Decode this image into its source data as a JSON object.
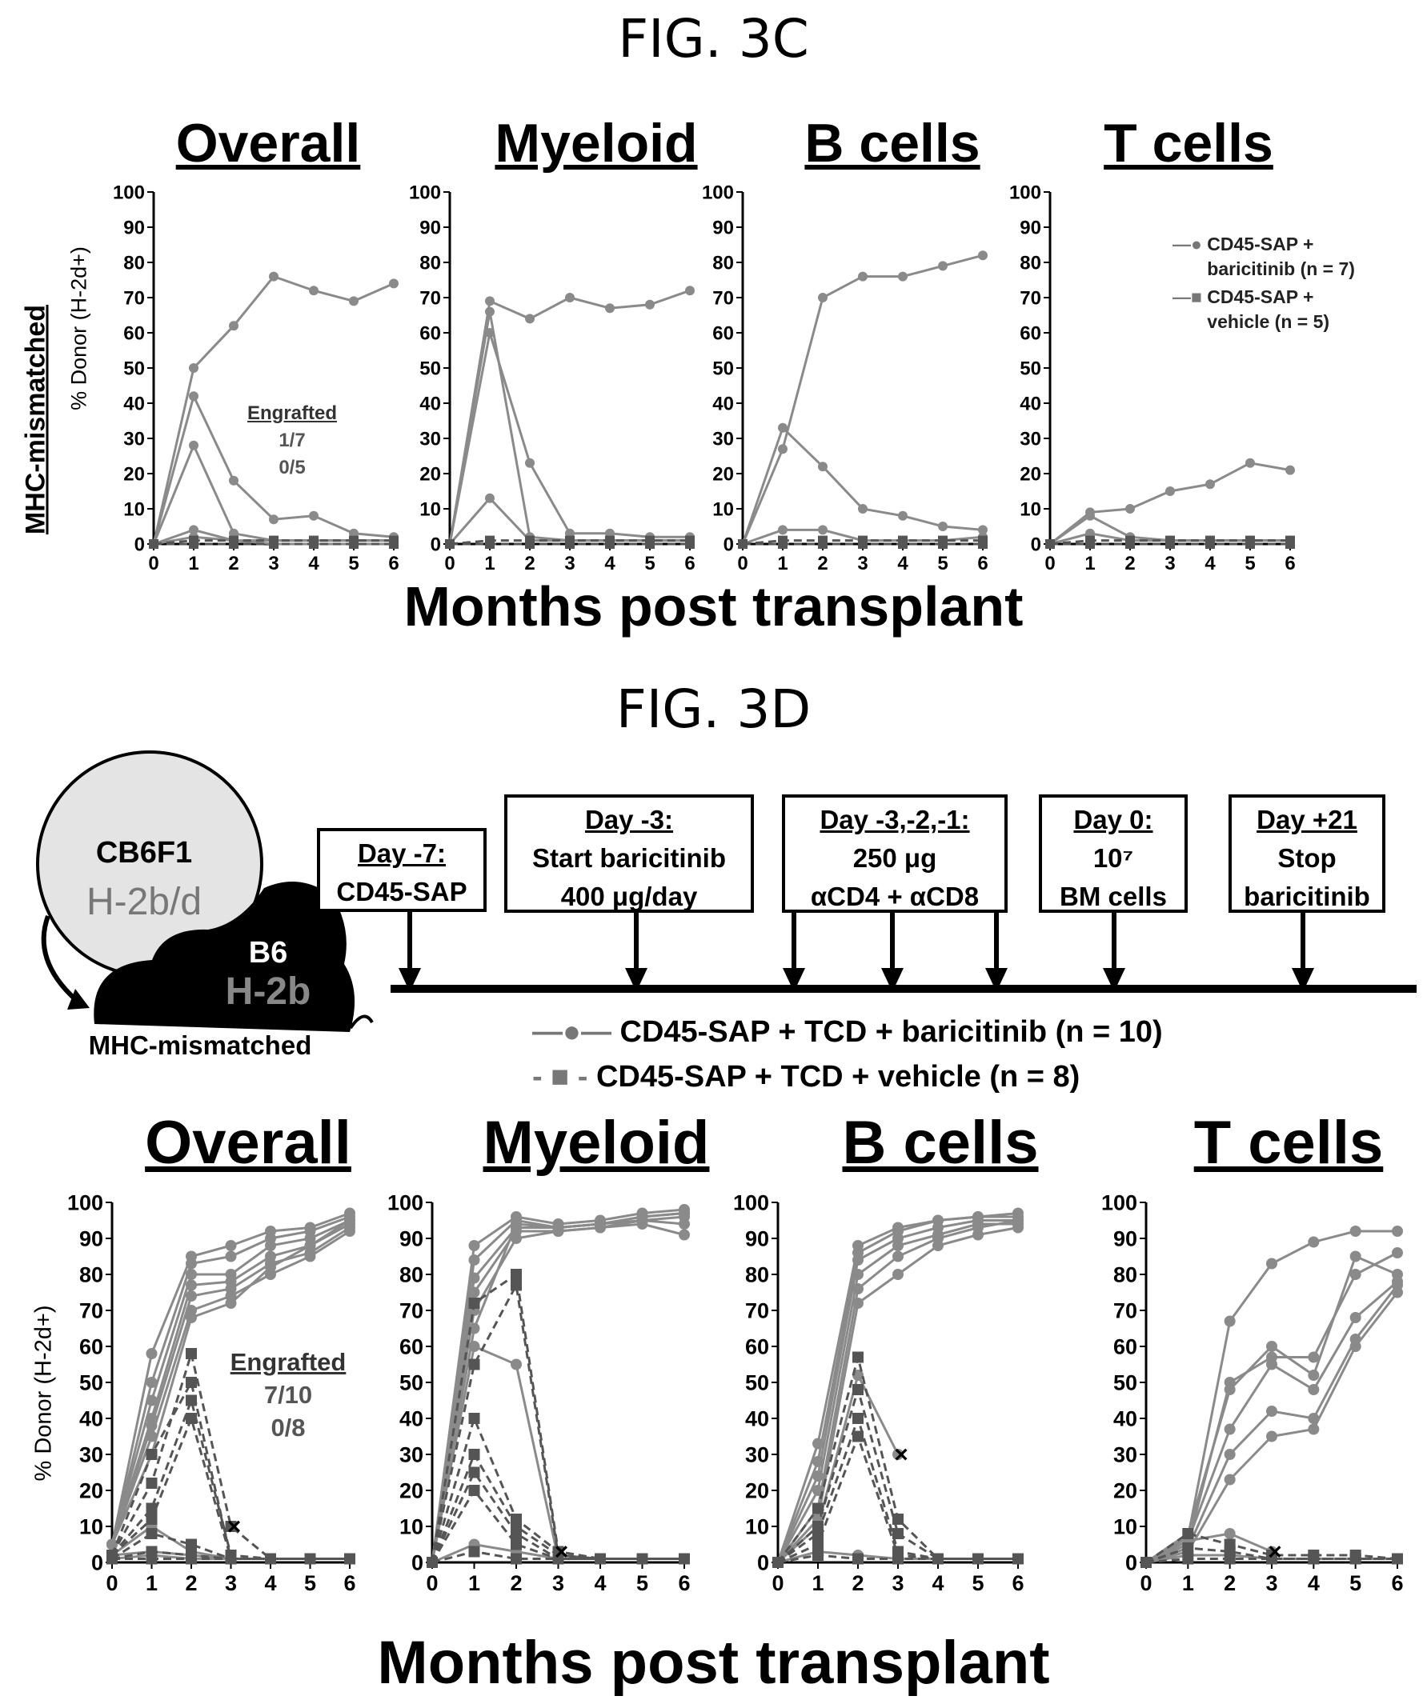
{
  "fig3c": {
    "title": "FIG. 3C"
  },
  "fig3d": {
    "title": "FIG. 3D"
  },
  "c": {
    "row_label": "MHC-mismatched",
    "ylabel": "% Donor (H-2d+)",
    "xlabel": "Months post transplant",
    "legend": [
      "CD45-SAP + baricitinib (n = 7)",
      "CD45-SAP + vehicle (n = 5)"
    ],
    "engrafted": {
      "title": "Engrafted",
      "a": "1/7",
      "b": "0/5"
    }
  },
  "d": {
    "ylabel": "% Donor (H-2d+)",
    "xlabel": "Months post transplant",
    "legend": [
      "CD45-SAP + TCD + baricitinib (n = 10)",
      "CD45-SAP + TCD + vehicle (n = 8)"
    ],
    "engrafted": {
      "title": "Engrafted",
      "a": "7/10",
      "b": "0/8"
    },
    "schema": {
      "donor": "CB6F1",
      "donor_hap": "H-2b/d",
      "recipient": "B6",
      "recipient_hap": "H-2b",
      "mouse_label": "MHC-mismatched",
      "boxes": [
        {
          "head": "Day -7:",
          "l1": "CD45-SAP",
          "l2": ""
        },
        {
          "head": "Day -3:",
          "l1": "Start baricitinib",
          "l2": "400 μg/day"
        },
        {
          "head": "Day -3,-2,-1:",
          "l1": "250 μg",
          "l2": "αCD4 + αCD8"
        },
        {
          "head": "Day 0:",
          "l1": "10⁷",
          "l2": "BM cells"
        },
        {
          "head": "Day +21",
          "l1": "Stop",
          "l2": "baricitinib"
        }
      ]
    }
  },
  "chart_data": [
    {
      "type": "line",
      "panel": "FIG. 3C",
      "title": "Overall",
      "x": [
        0,
        1,
        2,
        3,
        4,
        5,
        6
      ],
      "ylim": [
        0,
        100
      ],
      "series": [
        {
          "group": "baricitinib",
          "values": [
            0,
            50,
            62,
            76,
            72,
            69,
            74
          ]
        },
        {
          "group": "baricitinib",
          "values": [
            0,
            42,
            18,
            7,
            8,
            3,
            2
          ]
        },
        {
          "group": "baricitinib",
          "values": [
            0,
            28,
            3,
            1,
            1,
            1,
            1
          ]
        },
        {
          "group": "baricitinib",
          "values": [
            0,
            4,
            1,
            1,
            1,
            1,
            1
          ]
        },
        {
          "group": "baricitinib",
          "values": [
            0,
            2,
            1,
            0,
            0,
            0,
            0
          ]
        },
        {
          "group": "vehicle",
          "values": [
            0,
            1,
            1,
            1,
            1,
            1,
            1
          ]
        },
        {
          "group": "vehicle",
          "values": [
            0,
            0,
            0,
            0,
            0,
            0,
            0
          ]
        }
      ]
    },
    {
      "type": "line",
      "panel": "FIG. 3C",
      "title": "Myeloid",
      "x": [
        0,
        1,
        2,
        3,
        4,
        5,
        6
      ],
      "ylim": [
        0,
        100
      ],
      "series": [
        {
          "group": "baricitinib",
          "values": [
            0,
            69,
            64,
            70,
            67,
            68,
            72
          ]
        },
        {
          "group": "baricitinib",
          "values": [
            0,
            60,
            23,
            3,
            3,
            2,
            2
          ]
        },
        {
          "group": "baricitinib",
          "values": [
            0,
            13,
            1,
            1,
            1,
            1,
            1
          ]
        },
        {
          "group": "baricitinib",
          "values": [
            0,
            66,
            2,
            1,
            1,
            1,
            1
          ]
        },
        {
          "group": "vehicle",
          "values": [
            0,
            1,
            1,
            1,
            1,
            1,
            1
          ]
        },
        {
          "group": "vehicle",
          "values": [
            0,
            0,
            0,
            0,
            0,
            0,
            0
          ]
        }
      ]
    },
    {
      "type": "line",
      "panel": "FIG. 3C",
      "title": "B cells",
      "x": [
        0,
        1,
        2,
        3,
        4,
        5,
        6
      ],
      "ylim": [
        0,
        100
      ],
      "series": [
        {
          "group": "baricitinib",
          "values": [
            0,
            27,
            70,
            76,
            76,
            79,
            82
          ]
        },
        {
          "group": "baricitinib",
          "values": [
            0,
            33,
            22,
            10,
            8,
            5,
            4
          ]
        },
        {
          "group": "baricitinib",
          "values": [
            0,
            4,
            4,
            1,
            1,
            1,
            2
          ]
        },
        {
          "group": "vehicle",
          "values": [
            0,
            1,
            1,
            1,
            1,
            1,
            1
          ]
        },
        {
          "group": "vehicle",
          "values": [
            0,
            0,
            0,
            0,
            0,
            0,
            0
          ]
        }
      ]
    },
    {
      "type": "line",
      "panel": "FIG. 3C",
      "title": "T cells",
      "x": [
        0,
        1,
        2,
        3,
        4,
        5,
        6
      ],
      "ylim": [
        0,
        100
      ],
      "series": [
        {
          "group": "baricitinib",
          "values": [
            0,
            9,
            10,
            15,
            17,
            23,
            21
          ]
        },
        {
          "group": "baricitinib",
          "values": [
            0,
            8,
            2,
            1,
            1,
            1,
            1
          ]
        },
        {
          "group": "baricitinib",
          "values": [
            0,
            3,
            1,
            1,
            1,
            1,
            1
          ]
        },
        {
          "group": "vehicle",
          "values": [
            0,
            1,
            1,
            1,
            1,
            1,
            1
          ]
        },
        {
          "group": "vehicle",
          "values": [
            0,
            0,
            0,
            0,
            0,
            0,
            0
          ]
        }
      ]
    },
    {
      "type": "line",
      "panel": "FIG. 3D",
      "title": "Overall",
      "x": [
        0,
        1,
        2,
        3,
        4,
        5,
        6
      ],
      "ylim": [
        0,
        100
      ],
      "series": [
        {
          "group": "baricitinib",
          "values": [
            5,
            58,
            85,
            88,
            92,
            93,
            97
          ]
        },
        {
          "group": "baricitinib",
          "values": [
            5,
            50,
            83,
            85,
            90,
            92,
            96
          ]
        },
        {
          "group": "baricitinib",
          "values": [
            5,
            45,
            80,
            80,
            88,
            90,
            95
          ]
        },
        {
          "group": "baricitinib",
          "values": [
            5,
            40,
            77,
            78,
            85,
            88,
            94
          ]
        },
        {
          "group": "baricitinib",
          "values": [
            5,
            38,
            74,
            76,
            83,
            86,
            93
          ]
        },
        {
          "group": "baricitinib",
          "values": [
            5,
            35,
            70,
            74,
            80,
            85,
            92
          ]
        },
        {
          "group": "baricitinib",
          "values": [
            5,
            30,
            68,
            72,
            82,
            88,
            95
          ]
        },
        {
          "group": "baricitinib",
          "values": [
            2,
            10,
            3,
            1,
            1,
            1,
            1
          ]
        },
        {
          "group": "baricitinib",
          "values": [
            2,
            3,
            2,
            1,
            1,
            1,
            1
          ]
        },
        {
          "group": "baricitinib",
          "values": [
            1,
            2,
            1,
            1,
            1,
            1,
            1
          ]
        },
        {
          "group": "vehicle",
          "values": [
            2,
            22,
            58,
            10,
            1,
            1,
            1
          ]
        },
        {
          "group": "vehicle",
          "values": [
            2,
            30,
            50,
            1,
            1,
            1,
            1
          ]
        },
        {
          "group": "vehicle",
          "values": [
            2,
            15,
            45,
            2,
            1,
            1,
            1
          ]
        },
        {
          "group": "vehicle",
          "values": [
            2,
            12,
            40,
            1,
            1,
            1,
            1
          ]
        },
        {
          "group": "vehicle",
          "values": [
            1,
            8,
            5,
            1,
            1,
            1,
            1
          ]
        },
        {
          "group": "vehicle",
          "values": [
            1,
            3,
            2,
            1,
            1,
            1,
            1
          ]
        },
        {
          "group": "vehicle",
          "values": [
            1,
            1,
            1,
            1,
            1,
            1,
            1
          ]
        }
      ]
    },
    {
      "type": "line",
      "panel": "FIG. 3D",
      "title": "Myeloid",
      "x": [
        0,
        1,
        2,
        3,
        4,
        5,
        6
      ],
      "ylim": [
        0,
        100
      ],
      "series": [
        {
          "group": "baricitinib",
          "values": [
            0,
            88,
            96,
            94,
            95,
            97,
            98
          ]
        },
        {
          "group": "baricitinib",
          "values": [
            0,
            84,
            95,
            93,
            94,
            96,
            97
          ]
        },
        {
          "group": "baricitinib",
          "values": [
            0,
            79,
            93,
            93,
            94,
            95,
            96
          ]
        },
        {
          "group": "baricitinib",
          "values": [
            0,
            75,
            92,
            92,
            93,
            95,
            94
          ]
        },
        {
          "group": "baricitinib",
          "values": [
            0,
            70,
            90,
            92,
            93,
            94,
            91
          ]
        },
        {
          "group": "baricitinib",
          "values": [
            0,
            65,
            94,
            93,
            94,
            96,
            97
          ]
        },
        {
          "group": "baricitinib",
          "values": [
            0,
            60,
            55,
            1,
            1,
            1,
            1
          ]
        },
        {
          "group": "baricitinib",
          "values": [
            0,
            5,
            3,
            1,
            1,
            1,
            1
          ]
        },
        {
          "group": "vehicle",
          "values": [
            0,
            72,
            80,
            3,
            1,
            1,
            1
          ]
        },
        {
          "group": "vehicle",
          "values": [
            0,
            55,
            77,
            2,
            1,
            1,
            1
          ]
        },
        {
          "group": "vehicle",
          "values": [
            0,
            40,
            12,
            3,
            1,
            1,
            1
          ]
        },
        {
          "group": "vehicle",
          "values": [
            0,
            30,
            10,
            2,
            1,
            1,
            1
          ]
        },
        {
          "group": "vehicle",
          "values": [
            0,
            25,
            8,
            1,
            1,
            1,
            1
          ]
        },
        {
          "group": "vehicle",
          "values": [
            0,
            20,
            5,
            1,
            1,
            1,
            1
          ]
        },
        {
          "group": "vehicle",
          "values": [
            0,
            3,
            1,
            1,
            1,
            1,
            1
          ]
        }
      ]
    },
    {
      "type": "line",
      "panel": "FIG. 3D",
      "title": "B cells",
      "x": [
        0,
        1,
        2,
        3,
        4,
        5,
        6
      ],
      "ylim": [
        0,
        100
      ],
      "series": [
        {
          "group": "baricitinib",
          "values": [
            0,
            33,
            88,
            93,
            95,
            96,
            97
          ]
        },
        {
          "group": "baricitinib",
          "values": [
            0,
            28,
            86,
            92,
            95,
            96,
            96
          ]
        },
        {
          "group": "baricitinib",
          "values": [
            0,
            24,
            84,
            90,
            93,
            95,
            95
          ]
        },
        {
          "group": "baricitinib",
          "values": [
            0,
            20,
            80,
            88,
            91,
            94,
            94
          ]
        },
        {
          "group": "baricitinib",
          "values": [
            0,
            15,
            76,
            85,
            90,
            93,
            95
          ]
        },
        {
          "group": "baricitinib",
          "values": [
            0,
            12,
            72,
            80,
            88,
            91,
            93
          ]
        },
        {
          "group": "baricitinib",
          "values": [
            0,
            10,
            52,
            30,
            null,
            null,
            null
          ]
        },
        {
          "group": "baricitinib",
          "values": [
            0,
            3,
            2,
            1,
            1,
            1,
            1
          ]
        },
        {
          "group": "vehicle",
          "values": [
            0,
            15,
            57,
            12,
            1,
            1,
            1
          ]
        },
        {
          "group": "vehicle",
          "values": [
            0,
            10,
            48,
            8,
            1,
            1,
            1
          ]
        },
        {
          "group": "vehicle",
          "values": [
            0,
            8,
            40,
            3,
            1,
            1,
            1
          ]
        },
        {
          "group": "vehicle",
          "values": [
            0,
            5,
            35,
            2,
            1,
            1,
            1
          ]
        },
        {
          "group": "vehicle",
          "values": [
            0,
            2,
            1,
            1,
            1,
            1,
            1
          ]
        }
      ]
    },
    {
      "type": "line",
      "panel": "FIG. 3D",
      "title": "T cells",
      "x": [
        0,
        1,
        2,
        3,
        4,
        5,
        6
      ],
      "ylim": [
        0,
        100
      ],
      "series": [
        {
          "group": "baricitinib",
          "values": [
            0,
            7,
            67,
            83,
            89,
            92,
            92
          ]
        },
        {
          "group": "baricitinib",
          "values": [
            0,
            5,
            50,
            57,
            57,
            80,
            86
          ]
        },
        {
          "group": "baricitinib",
          "values": [
            0,
            8,
            48,
            60,
            52,
            85,
            80
          ]
        },
        {
          "group": "baricitinib",
          "values": [
            0,
            6,
            37,
            55,
            48,
            68,
            78
          ]
        },
        {
          "group": "baricitinib",
          "values": [
            0,
            4,
            30,
            42,
            40,
            62,
            77
          ]
        },
        {
          "group": "baricitinib",
          "values": [
            0,
            3,
            23,
            35,
            37,
            60,
            75
          ]
        },
        {
          "group": "baricitinib",
          "values": [
            0,
            6,
            8,
            3,
            null,
            null,
            null
          ]
        },
        {
          "group": "baricitinib",
          "values": [
            0,
            2,
            2,
            1,
            1,
            1,
            1
          ]
        },
        {
          "group": "vehicle",
          "values": [
            0,
            8,
            5,
            2,
            2,
            2,
            1
          ]
        },
        {
          "group": "vehicle",
          "values": [
            0,
            4,
            3,
            1,
            1,
            1,
            1
          ]
        },
        {
          "group": "vehicle",
          "values": [
            0,
            1,
            1,
            1,
            1,
            1,
            1
          ]
        }
      ]
    }
  ]
}
